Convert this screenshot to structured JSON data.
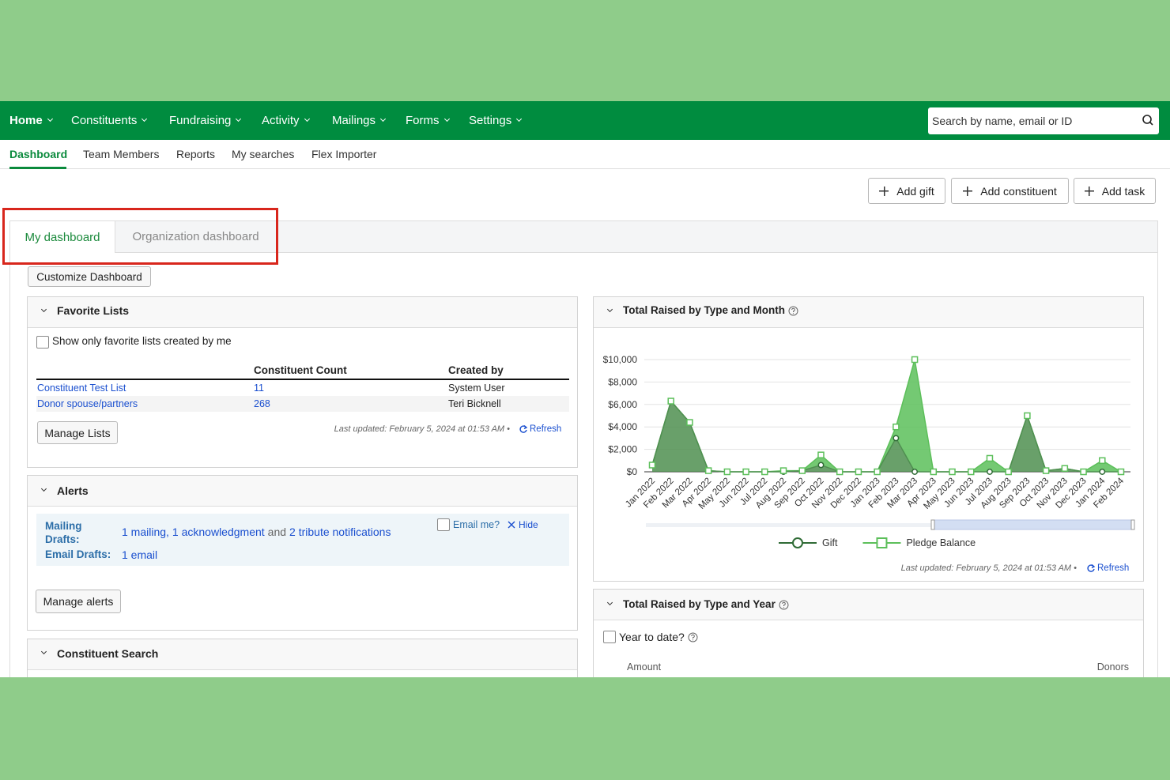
{
  "nav": {
    "items": [
      "Home",
      "Constituents",
      "Fundraising",
      "Activity",
      "Mailings",
      "Forms",
      "Settings"
    ],
    "search_placeholder": "Search by name, email or ID"
  },
  "subnav": {
    "items": [
      "Dashboard",
      "Team Members",
      "Reports",
      "My searches",
      "Flex Importer"
    ]
  },
  "actions": [
    "Add gift",
    "Add constituent",
    "Add task"
  ],
  "tabs": [
    "My dashboard",
    "Organization dashboard"
  ],
  "customize_button": "Customize Dashboard",
  "favorite_lists": {
    "title": "Favorite Lists",
    "checkbox": "Show only favorite lists created by me",
    "columns": [
      "Constituent Count",
      "Created by"
    ],
    "rows": [
      [
        "Constituent Test List",
        11,
        "System User"
      ],
      [
        "Donor spouse/partners",
        268,
        "Teri Bicknell"
      ]
    ],
    "button": "Manage Lists",
    "last_updated": "Last updated: February 5, 2024 at 01:53 AM •",
    "refresh": "Refresh"
  },
  "alerts": {
    "title": "Alerts",
    "mailing_label": "Mailing Drafts:",
    "mailing_parts": [
      "1 mailing,",
      "1 acknowledgment",
      "and",
      "2 tribute notifications"
    ],
    "email_me": "Email me?",
    "hide": "Hide",
    "email_label": "Email Drafts:",
    "email_link": "1 email",
    "button": "Manage alerts"
  },
  "constituent_search": {
    "title": "Constituent Search"
  },
  "chart_panel": {
    "title": "Total Raised by Type and Month",
    "last_updated": "Last updated: February 5, 2024 at 01:53 AM •",
    "refresh": "Refresh"
  },
  "chart_data": {
    "type": "area",
    "stacked": true,
    "categories": [
      "Jan 2022",
      "Feb 2022",
      "Mar 2022",
      "Apr 2022",
      "May 2022",
      "Jun 2022",
      "Jul 2022",
      "Aug 2022",
      "Sep 2022",
      "Oct 2022",
      "Nov 2022",
      "Dec 2022",
      "Jan 2023",
      "Feb 2023",
      "Mar 2023",
      "Apr 2023",
      "May 2023",
      "Jun 2023",
      "Jul 2023",
      "Aug 2023",
      "Sep 2023",
      "Oct 2023",
      "Nov 2023",
      "Dec 2023",
      "Jan 2024",
      "Feb 2024"
    ],
    "series": [
      {
        "name": "Gift",
        "color": "#4f8f50",
        "marker": "circle",
        "values": [
          600,
          6300,
          4400,
          100,
          0,
          0,
          0,
          0,
          100,
          600,
          0,
          0,
          0,
          3000,
          0,
          0,
          0,
          0,
          0,
          0,
          5000,
          100,
          300,
          0,
          0,
          0
        ]
      },
      {
        "name": "Pledge Balance",
        "color": "#5cbf5a",
        "marker": "square",
        "values": [
          0,
          0,
          0,
          0,
          0,
          0,
          0,
          100,
          0,
          900,
          0,
          0,
          0,
          1000,
          10000,
          0,
          0,
          0,
          1200,
          0,
          0,
          0,
          0,
          0,
          1000,
          0
        ]
      }
    ],
    "ylim": [
      0,
      10000
    ],
    "yticks": [
      {
        "value": 0,
        "label": "$0"
      },
      {
        "value": 2000,
        "label": "$2,000"
      },
      {
        "value": 4000,
        "label": "$4,000"
      },
      {
        "value": 6000,
        "label": "$6,000"
      },
      {
        "value": 8000,
        "label": "$8,000"
      },
      {
        "value": 10000,
        "label": "$10,000"
      }
    ],
    "grid": true
  },
  "year_panel": {
    "title": "Total Raised by Type and Year",
    "checkbox": "Year to date?",
    "columns": [
      "Amount",
      "Donors"
    ]
  }
}
